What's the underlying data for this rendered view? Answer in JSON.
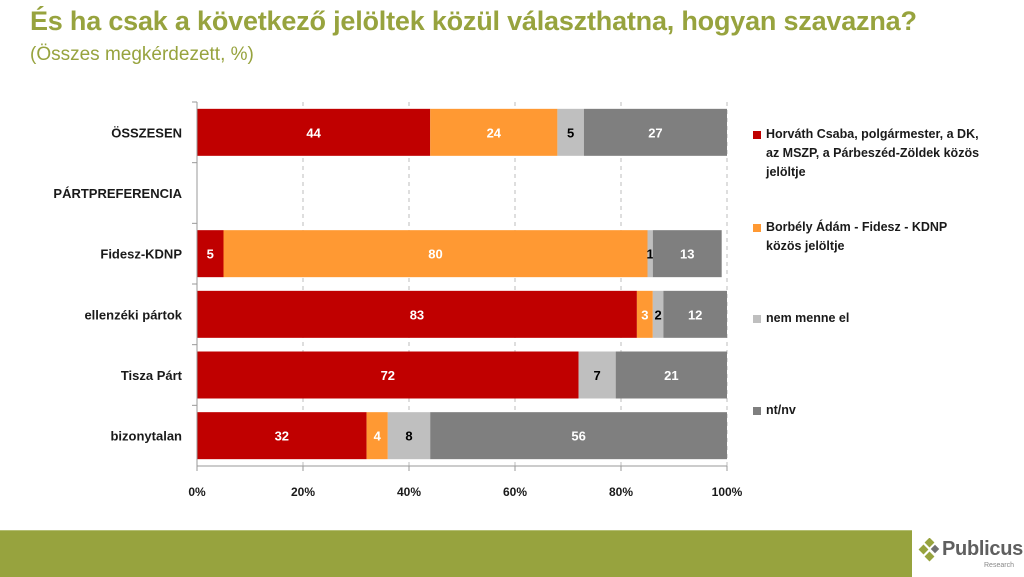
{
  "header": {
    "title": "És ha csak a következő jelöltek közül választhatna, hogyan szavazna?",
    "subtitle": "(Összes megkérdezett, %)"
  },
  "chart_data": {
    "type": "bar",
    "orientation": "horizontal",
    "stacked": "percent",
    "title": "És ha csak a következő jelöltek közül választhatna, hogyan szavazna?",
    "subtitle": "(Összes megkérdezett, %)",
    "categories": [
      "ÖSSZESEN",
      "PÁRTPREFERENCIA",
      "Fidesz-KDNP",
      "ellenzéki pártok",
      "Tisza Párt",
      "bizonytalan"
    ],
    "series": [
      {
        "name": "Horváth Csaba, polgármester, a DK, az MSZP, a Párbeszéd-Zöldek közös jelöltje",
        "color": "#c00000",
        "label_color": "#ffffff",
        "values": [
          44,
          null,
          5,
          83,
          72,
          32
        ]
      },
      {
        "name": "Borbély Ádám - Fidesz - KDNP közös jelöltje",
        "color": "#ff9933",
        "label_color": "#ffffff",
        "values": [
          24,
          null,
          80,
          3,
          0,
          4
        ]
      },
      {
        "name": "nem menne el",
        "color": "#bfbfbf",
        "label_color": "#000000",
        "values": [
          5,
          null,
          1,
          2,
          7,
          8
        ]
      },
      {
        "name": "nt/nv",
        "color": "#7f7f7f",
        "label_color": "#ffffff",
        "values": [
          27,
          null,
          13,
          12,
          21,
          56
        ]
      }
    ],
    "xlim": [
      0,
      100
    ],
    "xticks": [
      "0%",
      "20%",
      "40%",
      "60%",
      "80%",
      "100%"
    ],
    "xtick_values": [
      0,
      20,
      40,
      60,
      80,
      100
    ],
    "grid": "vertical dashed",
    "legend_position": "right",
    "xlabel": "",
    "ylabel": ""
  },
  "legend": [
    {
      "label": "Horváth Csaba, polgármester, a DK, az MSZP, a Párbeszéd-Zöldek közös jelöltje",
      "color": "#c00000"
    },
    {
      "label": "Borbély Ádám - Fidesz - KDNP közös jelöltje",
      "color": "#ff9933"
    },
    {
      "label": "nem menne el",
      "color": "#bfbfbf"
    },
    {
      "label": "nt/nv",
      "color": "#7f7f7f"
    }
  ],
  "footer": {
    "color": "#97a33e",
    "logo_name": "Publicus",
    "logo_sub": "Research"
  }
}
